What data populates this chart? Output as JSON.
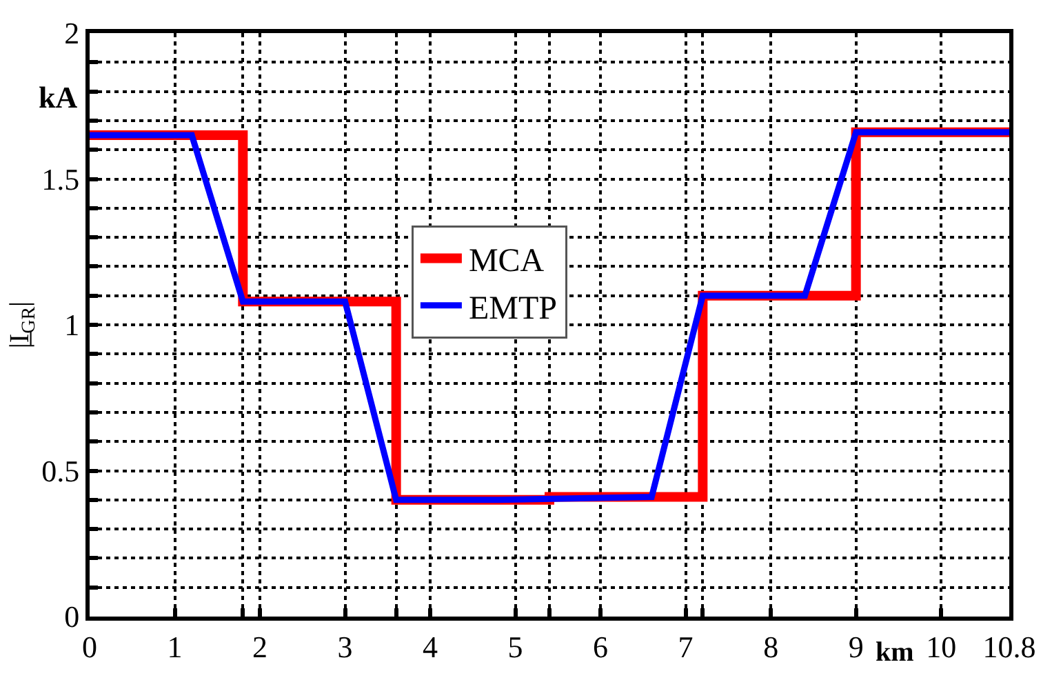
{
  "chart_data": {
    "type": "line",
    "xlabel": "km",
    "ylabel": "|I̲$_{GR}$|",
    "annotations": [
      "kA"
    ],
    "series": [
      {
        "name": "MCA",
        "color": "#ff0000",
        "x": [
          0,
          1.8,
          1.8,
          3.6,
          3.6,
          5.4,
          5.4,
          7.2,
          7.2,
          9,
          9,
          10.8
        ],
        "values": [
          1.65,
          1.65,
          1.08,
          1.08,
          0.4,
          0.4,
          0.41,
          0.41,
          1.1,
          1.1,
          1.66,
          1.66
        ]
      },
      {
        "name": "EMTP",
        "color": "#0000ff",
        "x": [
          0,
          1.2,
          1.8,
          3.0,
          3.6,
          4.8,
          6.6,
          7.2,
          8.4,
          9,
          10.8
        ],
        "values": [
          1.65,
          1.65,
          1.08,
          1.08,
          0.4,
          0.4,
          0.41,
          1.1,
          1.1,
          1.66,
          1.66
        ]
      }
    ],
    "xlim": [
      0,
      10.8
    ],
    "xticks": [
      0,
      1,
      {
        "value": 1.8,
        "label": null
      },
      2,
      3,
      {
        "value": 3.6,
        "label": null
      },
      4,
      5,
      {
        "value": 5.4,
        "label": null
      },
      6,
      7,
      {
        "value": 7.2,
        "label": null
      },
      8,
      9,
      10,
      10.8
    ],
    "ylim": [
      0,
      2
    ],
    "yticks": [
      0,
      {
        "value": 0.1,
        "label": null
      },
      {
        "value": 0.2,
        "label": null
      },
      {
        "value": 0.3,
        "label": null
      },
      {
        "value": 0.4,
        "label": null
      },
      0.5,
      {
        "value": 0.6,
        "label": null
      },
      {
        "value": 0.7,
        "label": null
      },
      {
        "value": 0.8,
        "label": null
      },
      {
        "value": 0.9,
        "label": null
      },
      1,
      {
        "value": 1.1,
        "label": null
      },
      {
        "value": 1.2,
        "label": null
      },
      {
        "value": 1.3,
        "label": null
      },
      {
        "value": 1.4,
        "label": null
      },
      1.5,
      {
        "value": 1.6,
        "label": null
      },
      {
        "value": 1.7,
        "label": null
      },
      {
        "value": 1.8,
        "label": null
      },
      {
        "value": 1.9,
        "label": null
      },
      2
    ],
    "grid": true,
    "legend": "center",
    "line_style": "solid",
    "marker": "none"
  }
}
